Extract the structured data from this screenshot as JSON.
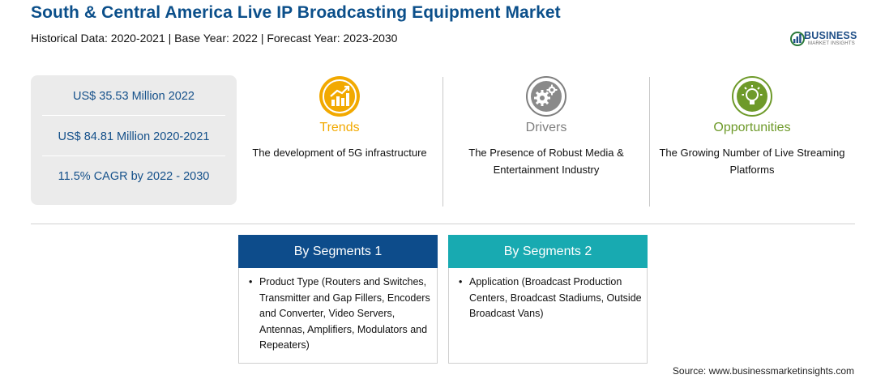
{
  "header": {
    "title": "South & Central America Live IP Broadcasting Equipment Market",
    "subtitle": "Historical Data: 2020-2021 | Base Year: 2022 | Forecast Year: 2023-2030"
  },
  "logo": {
    "name": "BUSINESS",
    "tagline": "MARKET INSIGHTS"
  },
  "stats": [
    "US$ 35.53 Million 2022",
    "US$ 84.81 Million 2020-2021",
    "11.5% CAGR by 2022 - 2030"
  ],
  "columns": {
    "trends": {
      "title": "Trends",
      "text": "The development of 5G infrastructure",
      "color": "#f2a900"
    },
    "drivers": {
      "title": "Drivers",
      "text": "The Presence of Robust Media & Entertainment Industry",
      "color": "#808080"
    },
    "opportunities": {
      "title": "Opportunities",
      "text": "The Growing Number of Live Streaming Platforms",
      "color": "#6e9a2a"
    }
  },
  "segments": [
    {
      "title": "By Segments 1",
      "color": "#0d4c8b",
      "items": [
        "Product Type (Routers and Switches, Transmitter and Gap Fillers, Encoders and Converter, Video Servers, Antennas, Amplifiers, Modulators and Repeaters)"
      ]
    },
    {
      "title": "By Segments 2",
      "color": "#18aab1",
      "items": [
        "Application (Broadcast Production Centers, Broadcast Stadiums, Outside Broadcast Vans)"
      ]
    }
  ],
  "source": "Source: www.businessmarketinsights.com"
}
